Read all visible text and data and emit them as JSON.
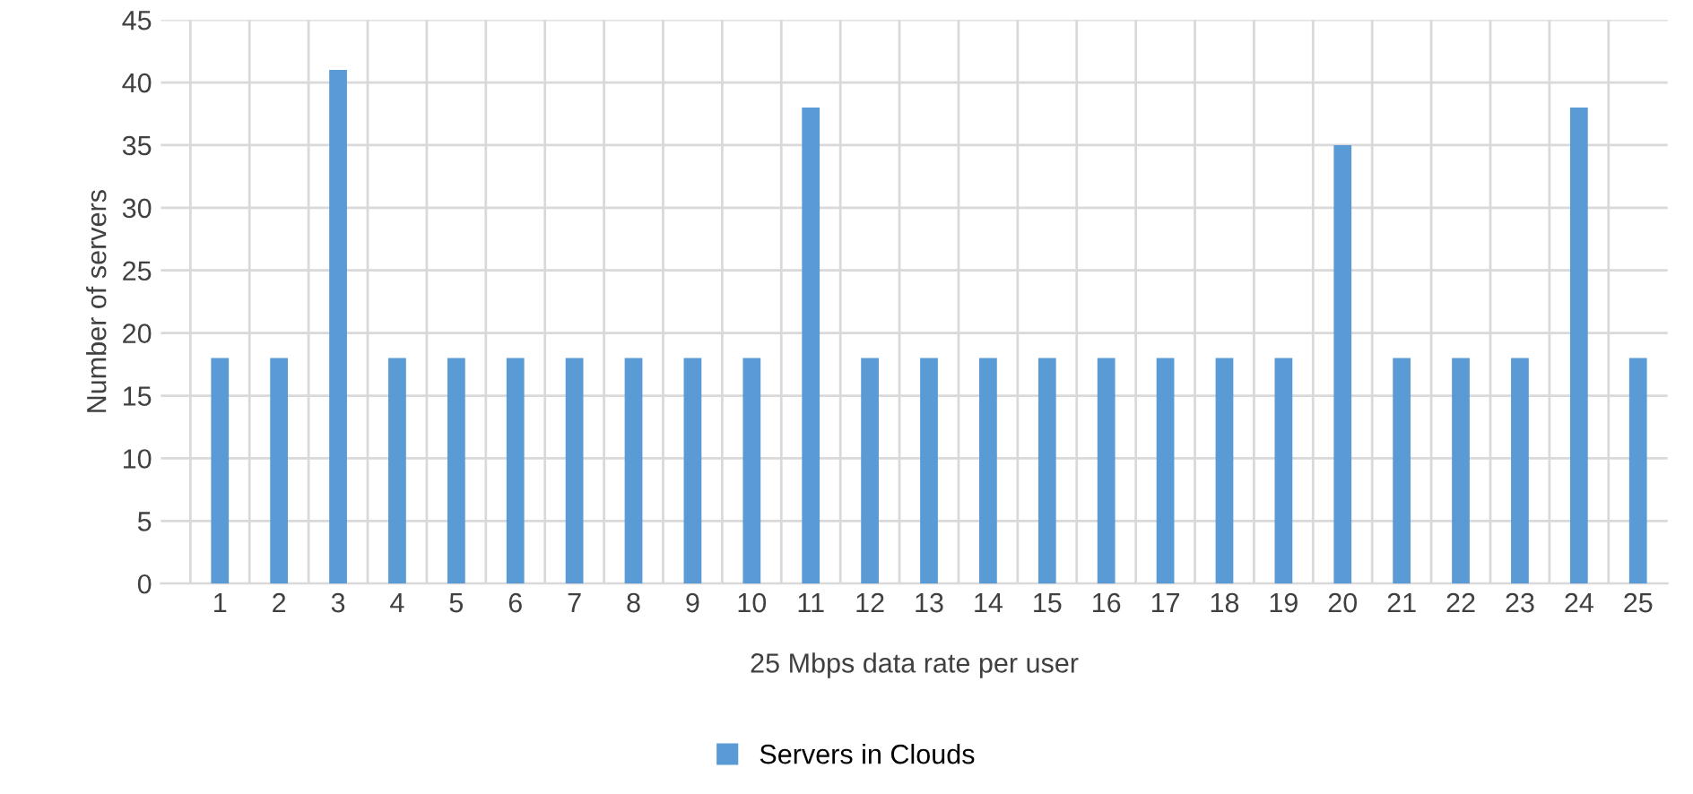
{
  "chart_data": {
    "type": "bar",
    "xlabel": "25 Mbps data rate per user",
    "ylabel": "Number of servers",
    "categories": [
      "1",
      "2",
      "3",
      "4",
      "5",
      "6",
      "7",
      "8",
      "9",
      "10",
      "11",
      "12",
      "13",
      "14",
      "15",
      "16",
      "17",
      "18",
      "19",
      "20",
      "21",
      "22",
      "23",
      "24",
      "25"
    ],
    "series": [
      {
        "name": "Servers in Clouds",
        "color": "#5b9bd5",
        "values": [
          18,
          18,
          41,
          18,
          18,
          18,
          18,
          18,
          18,
          18,
          38,
          18,
          18,
          18,
          18,
          18,
          18,
          18,
          18,
          35,
          18,
          18,
          18,
          38,
          18
        ]
      }
    ],
    "ylim": [
      0,
      45
    ],
    "yticks": [
      0,
      5,
      10,
      15,
      20,
      25,
      30,
      35,
      40,
      45
    ],
    "grid": true,
    "legend": "bottom"
  }
}
